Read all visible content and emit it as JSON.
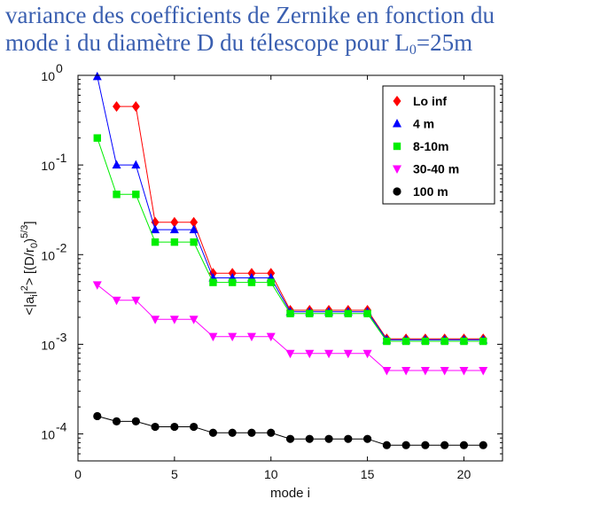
{
  "title": {
    "line1": "variance des coefficients de Zernike en fonction du",
    "line2_main": "mode i du diamètre D du télescope pour L",
    "line2_sub": "0",
    "line2_end": "=25m"
  },
  "chart_data": {
    "type": "scatter",
    "xlabel": "mode i",
    "ylabel": "<|a_i|^2> [(D/r_0)^(5/3)]",
    "ylabel_parts": {
      "a": "<|a",
      "b": "i",
      "c": "|",
      "d": "2",
      "e": "> [(D/r",
      "f": "0",
      "g": ")",
      "h": "5/3",
      "i": "]"
    },
    "xlim": [
      0,
      22
    ],
    "ylim": [
      5e-05,
      1
    ],
    "yscale": "log",
    "xticks": [
      0,
      5,
      10,
      15,
      20
    ],
    "yticks": [
      {
        "value": 1,
        "base": "10",
        "exp": "0"
      },
      {
        "value": 0.1,
        "base": "10",
        "exp": "-1"
      },
      {
        "value": 0.01,
        "base": "10",
        "exp": "-2"
      },
      {
        "value": 0.001,
        "base": "10",
        "exp": "-3"
      },
      {
        "value": 0.0001,
        "base": "10",
        "exp": "-4"
      }
    ],
    "grid": false,
    "legend_position": "top-right",
    "x": [
      1,
      2,
      3,
      4,
      5,
      6,
      7,
      8,
      9,
      10,
      11,
      12,
      13,
      14,
      15,
      16,
      17,
      18,
      19,
      20,
      21
    ],
    "series": [
      {
        "name": "Lo inf",
        "color": "#ff0000",
        "marker": "diamond",
        "x": [
          2,
          3,
          4,
          5,
          6,
          7,
          8,
          9,
          10,
          11,
          12,
          13,
          14,
          15,
          16,
          17,
          18,
          19,
          20,
          21
        ],
        "values": [
          0.45,
          0.45,
          0.023,
          0.023,
          0.023,
          0.0062,
          0.0062,
          0.0062,
          0.0062,
          0.0024,
          0.0024,
          0.0024,
          0.0024,
          0.0024,
          0.00115,
          0.00115,
          0.00115,
          0.00115,
          0.00115,
          0.00115
        ]
      },
      {
        "name": "4 m",
        "color": "#0000ff",
        "marker": "triangle-up",
        "x": [
          1,
          2,
          3,
          4,
          5,
          6,
          7,
          8,
          9,
          10,
          11,
          12,
          13,
          14,
          15,
          16,
          17,
          18,
          19,
          20,
          21
        ],
        "values": [
          0.97,
          0.1,
          0.1,
          0.019,
          0.019,
          0.019,
          0.0055,
          0.0055,
          0.0055,
          0.0055,
          0.0023,
          0.0023,
          0.0023,
          0.0023,
          0.0023,
          0.00112,
          0.00112,
          0.00112,
          0.00112,
          0.00112,
          0.00112
        ]
      },
      {
        "name": "8-10m",
        "color": "#00ee00",
        "marker": "square",
        "x": [
          1,
          2,
          3,
          4,
          5,
          6,
          7,
          8,
          9,
          10,
          11,
          12,
          13,
          14,
          15,
          16,
          17,
          18,
          19,
          20,
          21
        ],
        "values": [
          0.2,
          0.047,
          0.047,
          0.0138,
          0.0138,
          0.0138,
          0.0049,
          0.0049,
          0.0049,
          0.0049,
          0.0022,
          0.0022,
          0.0022,
          0.0022,
          0.0022,
          0.00108,
          0.00108,
          0.00108,
          0.00108,
          0.00108,
          0.00108
        ]
      },
      {
        "name": "30-40 m",
        "color": "#ff00ff",
        "marker": "triangle-down",
        "x": [
          1,
          2,
          3,
          4,
          5,
          6,
          7,
          8,
          9,
          10,
          11,
          12,
          13,
          14,
          15,
          16,
          17,
          18,
          19,
          20,
          21
        ],
        "values": [
          0.0046,
          0.0031,
          0.0031,
          0.0019,
          0.0019,
          0.0019,
          0.00122,
          0.00122,
          0.00122,
          0.00122,
          0.00079,
          0.00079,
          0.00079,
          0.00079,
          0.00079,
          0.00051,
          0.00051,
          0.00051,
          0.00051,
          0.00051,
          0.00051
        ]
      },
      {
        "name": "100 m",
        "color": "#000000",
        "marker": "circle",
        "x": [
          1,
          2,
          3,
          4,
          5,
          6,
          7,
          8,
          9,
          10,
          11,
          12,
          13,
          14,
          15,
          16,
          17,
          18,
          19,
          20,
          21
        ],
        "values": [
          0.000158,
          0.000138,
          0.000138,
          0.00012,
          0.00012,
          0.00012,
          0.000103,
          0.000103,
          0.000103,
          0.000103,
          8.8e-05,
          8.8e-05,
          8.8e-05,
          8.8e-05,
          8.8e-05,
          7.5e-05,
          7.5e-05,
          7.5e-05,
          7.5e-05,
          7.5e-05,
          7.5e-05
        ]
      }
    ]
  }
}
